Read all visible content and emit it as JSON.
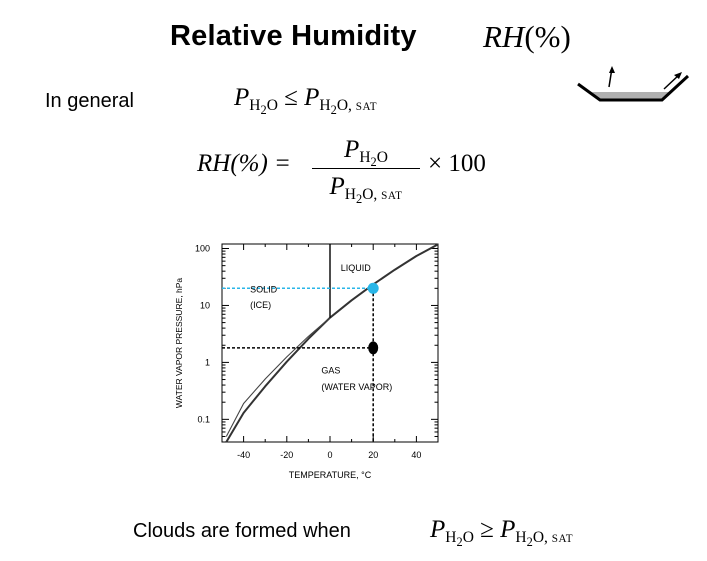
{
  "title": "Relative Humidity",
  "title_symbol": {
    "base": "RH",
    "paren": "(%)"
  },
  "general": {
    "label": "In general",
    "lhs": {
      "base": "P",
      "sub_main": "H",
      "sub_2": "2",
      "sub_end": "O"
    },
    "op": "≤",
    "rhs": {
      "base": "P",
      "sub_main": "H",
      "sub_2": "2",
      "sub_end": "O, ",
      "sub_sat": "SAT"
    }
  },
  "formula": {
    "lhs": "RH(%) =",
    "num": {
      "base": "P",
      "sub_main": "H",
      "sub_2": "2",
      "sub_end": "O"
    },
    "den": {
      "base": "P",
      "sub_main": "H",
      "sub_2": "2",
      "sub_end": "O, ",
      "sub_sat": "SAT"
    },
    "factor": "× 100"
  },
  "clouds": {
    "label": "Clouds are formed when",
    "lhs": {
      "base": "P",
      "sub_main": "H",
      "sub_2": "2",
      "sub_end": "O"
    },
    "op": "≥",
    "rhs": {
      "base": "P",
      "sub_main": "H",
      "sub_2": "2",
      "sub_end": "O, ",
      "sub_sat": "SAT"
    }
  },
  "colors": {
    "cyan": "#29b6e8",
    "black": "#000000",
    "curve": "#333333",
    "dish_fill": "#b0b0b0"
  },
  "chart_data": {
    "type": "line",
    "xlabel": "TEMPERATURE, °C",
    "ylabel": "WATER VAPOR PRESSURE, hPa",
    "xlim": [
      -50,
      50
    ],
    "ylim": [
      0.04,
      120
    ],
    "y_scale": "log",
    "x_ticks": [
      -40,
      -20,
      0,
      20,
      40
    ],
    "x_tick_labels": [
      "-40",
      "-20",
      "0",
      "20",
      "40"
    ],
    "y_ticks": [
      0.1,
      1,
      10,
      100
    ],
    "y_tick_labels": [
      "0.1",
      "1",
      "10",
      "100"
    ],
    "region_labels": {
      "liquid": "LIQUID",
      "solid_1": "SOLID",
      "solid_2": "(ICE)",
      "gas_1": "GAS",
      "gas_2": "(WATER VAPOR)"
    },
    "series": [
      {
        "x": [
          -48,
          -40,
          -30,
          -20,
          -10,
          0,
          10,
          20,
          30,
          40,
          50
        ],
        "y": [
          0.04,
          0.13,
          0.38,
          1.03,
          2.6,
          6.1,
          12.3,
          23.4,
          42.4,
          73.8,
          118
        ]
      },
      {
        "x": [
          -48,
          -40,
          -30,
          -20,
          -10,
          0
        ],
        "y": [
          0.05,
          0.19,
          0.51,
          1.25,
          2.86,
          6.1
        ]
      },
      {
        "x": [
          0,
          0
        ],
        "y": [
          6.1,
          120
        ]
      }
    ],
    "points": [
      {
        "x": 20,
        "y": 20,
        "color": "#29b6e8"
      },
      {
        "x": 20,
        "y": 1.8,
        "color": "#000000"
      }
    ]
  }
}
